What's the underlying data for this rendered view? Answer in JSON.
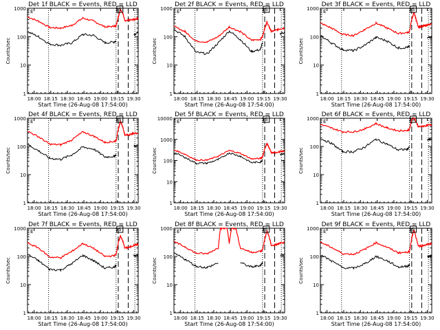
{
  "chart_data": {
    "type": "line",
    "layout": "3x3 grid",
    "series_legend": {
      "black": "Events",
      "red": "LLD"
    },
    "colors": {
      "events": "#000000",
      "lld": "#ff0000",
      "axes": "#000000"
    },
    "xlabel": "Start Time (26-Aug-08 17:54:00)",
    "ylabel": "Counts/sec",
    "x_range_minutes_from_start": [
      0,
      100
    ],
    "x_tick_labels": [
      "18:00",
      "18:15",
      "18:30",
      "18:45",
      "19:00",
      "19:15",
      "19:30"
    ],
    "x_tick_minutes": [
      6,
      21,
      36,
      51,
      66,
      81,
      96
    ],
    "markers": {
      "dotted_lines_minutes": [
        19,
        80,
        97
      ],
      "dashed_lines_minutes": [
        82,
        91
      ],
      "box_label": "S",
      "corner_label": "E"
    },
    "panels": [
      {
        "title": "Det 1f BLACK = Events, RED = LLD",
        "ylim": [
          1,
          1000
        ],
        "y_ticks": [
          "1",
          "10",
          "100",
          "1000"
        ],
        "x": [
          0,
          10,
          20,
          30,
          40,
          50,
          60,
          70,
          78,
          80,
          82,
          84,
          86,
          88,
          92,
          96,
          100
        ],
        "events": [
          150,
          100,
          55,
          50,
          60,
          120,
          110,
          60,
          65,
          70,
          null,
          null,
          null,
          null,
          null,
          120,
          140
        ],
        "lld": [
          500,
          350,
          210,
          200,
          250,
          450,
          350,
          220,
          230,
          240,
          500,
          900,
          700,
          350,
          380,
          400,
          450
        ]
      },
      {
        "title": "Det 2f BLACK = Events, RED = LLD",
        "ylim": [
          1,
          1000
        ],
        "y_ticks": [
          "1",
          "10",
          "100",
          "1000"
        ],
        "x": [
          0,
          10,
          20,
          30,
          40,
          50,
          60,
          70,
          78,
          80,
          82,
          84,
          86,
          88,
          92,
          96,
          100
        ],
        "events": [
          180,
          100,
          28,
          25,
          60,
          160,
          80,
          30,
          35,
          60,
          null,
          null,
          null,
          null,
          null,
          130,
          140
        ],
        "lld": [
          230,
          150,
          70,
          65,
          100,
          220,
          150,
          75,
          80,
          100,
          200,
          330,
          220,
          150,
          170,
          190,
          200
        ]
      },
      {
        "title": "Det 3f BLACK = Events, RED = LLD",
        "ylim": [
          1,
          1000
        ],
        "y_ticks": [
          "1",
          "10",
          "100",
          "1000"
        ],
        "x": [
          0,
          10,
          20,
          30,
          40,
          50,
          60,
          70,
          78,
          80,
          82,
          84,
          86,
          88,
          92,
          96,
          100
        ],
        "events": [
          110,
          60,
          35,
          32,
          50,
          95,
          70,
          40,
          42,
          45,
          null,
          null,
          null,
          null,
          null,
          90,
          100
        ],
        "lld": [
          300,
          200,
          120,
          110,
          180,
          300,
          200,
          130,
          140,
          150,
          400,
          700,
          400,
          220,
          230,
          260,
          270
        ]
      },
      {
        "title": "Det 4f BLACK = Events, RED = LLD",
        "ylim": [
          1,
          1000
        ],
        "y_ticks": [
          "1",
          "10",
          "100",
          "1000"
        ],
        "x": [
          0,
          10,
          20,
          30,
          40,
          50,
          60,
          70,
          78,
          80,
          82,
          84,
          86,
          88,
          92,
          96,
          100
        ],
        "events": [
          120,
          70,
          38,
          35,
          50,
          95,
          80,
          42,
          45,
          50,
          null,
          null,
          null,
          null,
          null,
          100,
          110
        ],
        "lld": [
          350,
          220,
          120,
          115,
          170,
          330,
          230,
          140,
          150,
          160,
          400,
          800,
          500,
          250,
          260,
          290,
          300
        ]
      },
      {
        "title": "Det 5f BLACK = Events, RED = LLD",
        "ylim": [
          1,
          10000
        ],
        "y_ticks": [
          "1",
          "10",
          "100",
          "1000",
          "10000"
        ],
        "x": [
          0,
          10,
          20,
          30,
          40,
          50,
          60,
          70,
          78,
          80,
          82,
          84,
          86,
          88,
          92,
          96,
          100
        ],
        "events": [
          240,
          140,
          75,
          75,
          110,
          230,
          160,
          80,
          85,
          110,
          null,
          null,
          null,
          null,
          null,
          200,
          210
        ],
        "lld": [
          320,
          200,
          105,
          105,
          160,
          300,
          220,
          120,
          125,
          150,
          350,
          650,
          400,
          230,
          240,
          260,
          280
        ]
      },
      {
        "title": "Det 6f BLACK = Events, RED = LLD",
        "ylim": [
          1,
          1000
        ],
        "y_ticks": [
          "1",
          "10",
          "100",
          "1000"
        ],
        "x": [
          0,
          10,
          20,
          30,
          40,
          50,
          60,
          70,
          78,
          80,
          82,
          84,
          86,
          88,
          92,
          96,
          100
        ],
        "events": [
          190,
          130,
          65,
          65,
          95,
          180,
          120,
          75,
          80,
          95,
          null,
          null,
          null,
          null,
          null,
          170,
          180
        ],
        "lld": [
          600,
          450,
          330,
          330,
          420,
          650,
          450,
          360,
          370,
          400,
          900,
          1100,
          700,
          500,
          520,
          560,
          580
        ]
      },
      {
        "title": "Det 7f BLACK = Events, RED = LLD",
        "ylim": [
          1,
          1000
        ],
        "y_ticks": [
          "1",
          "10",
          "100",
          "1000"
        ],
        "x": [
          0,
          10,
          20,
          30,
          40,
          50,
          60,
          70,
          78,
          80,
          82,
          84,
          86,
          88,
          92,
          96,
          100
        ],
        "events": [
          120,
          70,
          35,
          33,
          55,
          110,
          70,
          38,
          42,
          48,
          null,
          null,
          null,
          null,
          null,
          110,
          115
        ],
        "lld": [
          300,
          200,
          95,
          90,
          150,
          290,
          190,
          100,
          105,
          120,
          300,
          550,
          350,
          200,
          210,
          250,
          270
        ]
      },
      {
        "title": "Det 8f BLACK = Events, RED = LLD",
        "ylim": [
          1,
          1000
        ],
        "y_ticks": [
          "1",
          "10",
          "100",
          "1000"
        ],
        "x": [
          0,
          10,
          20,
          30,
          40,
          42,
          44,
          48,
          50,
          52,
          56,
          60,
          70,
          78,
          80,
          82,
          84,
          86,
          88,
          92,
          96,
          100
        ],
        "events": [
          130,
          80,
          45,
          40,
          60,
          null,
          null,
          null,
          100,
          null,
          null,
          60,
          42,
          48,
          60,
          null,
          null,
          null,
          null,
          null,
          110,
          120
        ],
        "lld": [
          330,
          220,
          130,
          125,
          200,
          1000,
          1000,
          1000,
          300,
          1000,
          1000,
          200,
          140,
          150,
          170,
          400,
          800,
          500,
          240,
          260,
          290,
          310
        ]
      },
      {
        "title": "Det 9f BLACK = Events, RED = LLD",
        "ylim": [
          1,
          1000
        ],
        "y_ticks": [
          "1",
          "10",
          "100",
          "1000"
        ],
        "x": [
          0,
          10,
          20,
          30,
          40,
          50,
          60,
          70,
          78,
          80,
          82,
          84,
          86,
          88,
          92,
          96,
          100
        ],
        "events": [
          115,
          70,
          40,
          38,
          55,
          100,
          70,
          42,
          45,
          50,
          null,
          null,
          null,
          null,
          null,
          100,
          105
        ],
        "lld": [
          320,
          210,
          125,
          120,
          180,
          310,
          210,
          135,
          140,
          150,
          450,
          850,
          450,
          230,
          240,
          270,
          290
        ]
      }
    ]
  }
}
